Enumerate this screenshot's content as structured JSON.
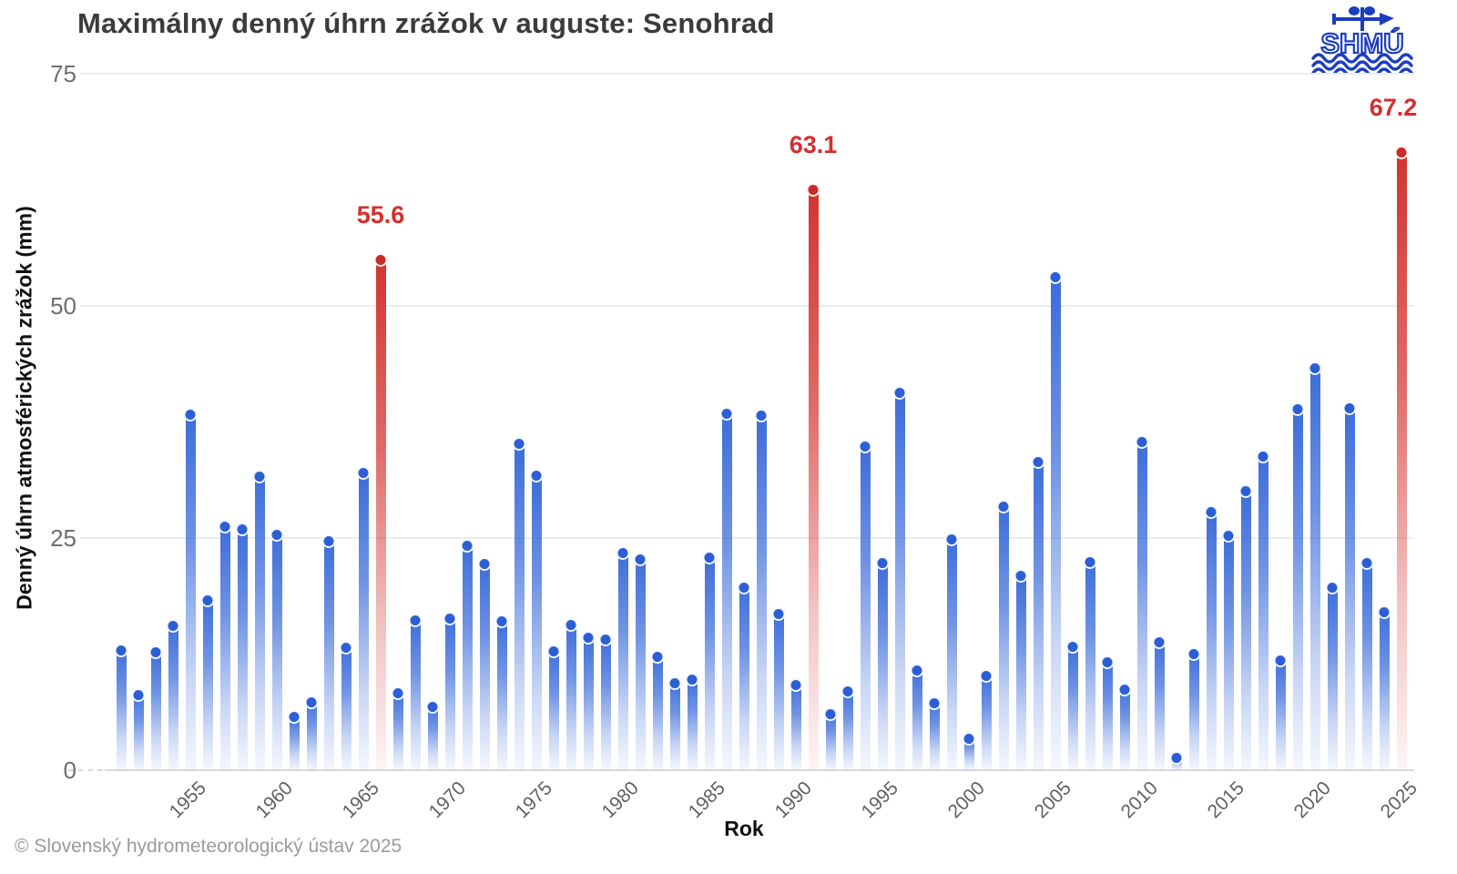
{
  "title": "Maximálny denný úhrn zrážok v auguste: Senohrad",
  "footer": "© Slovenský hydrometeorologický ústav 2025",
  "logo": {
    "text": "SHMÚ",
    "color": "#1c3ec0"
  },
  "colors": {
    "bar_blue": "#3a6bd9",
    "dot_blue": "#2c5ed5",
    "bar_red": "#d3322e",
    "dot_red": "#cc2a26",
    "peak_label_red": "#d32f2f",
    "gridline": "#ececec",
    "axis_text": "#6e6e6e"
  },
  "chart_data": {
    "type": "bar",
    "title": "Maximálny denný úhrn zrážok v auguste: Senohrad",
    "xlabel": "Rok",
    "ylabel": "Denný úhrn atmosférických zrážok (mm)",
    "ylim": [
      0,
      75
    ],
    "y_ticks": [
      0,
      25,
      50,
      75
    ],
    "x_tick_years": [
      1955,
      1960,
      1965,
      1970,
      1975,
      1980,
      1985,
      1990,
      1995,
      2000,
      2005,
      2010,
      2015,
      2020,
      2025
    ],
    "grid": true,
    "legend": false,
    "years": [
      1951,
      1952,
      1953,
      1954,
      1955,
      1956,
      1957,
      1958,
      1959,
      1960,
      1961,
      1962,
      1963,
      1964,
      1965,
      1966,
      1967,
      1968,
      1969,
      1970,
      1971,
      1972,
      1973,
      1974,
      1975,
      1976,
      1977,
      1978,
      1979,
      1980,
      1981,
      1982,
      1983,
      1984,
      1985,
      1986,
      1987,
      1988,
      1989,
      1990,
      1991,
      1992,
      1993,
      1994,
      1995,
      1996,
      1997,
      1998,
      1999,
      2000,
      2001,
      2002,
      2003,
      2004,
      2005,
      2006,
      2007,
      2008,
      2009,
      2010,
      2011,
      2012,
      2013,
      2014,
      2015,
      2016,
      2017,
      2018,
      2019,
      2020,
      2021,
      2022,
      2023,
      2024,
      2025
    ],
    "values": [
      13.5,
      8.7,
      13.3,
      16.2,
      38.9,
      18.9,
      26.9,
      26.6,
      32.3,
      26.0,
      6.4,
      7.9,
      25.3,
      13.8,
      32.6,
      55.6,
      8.9,
      16.8,
      7.5,
      17.0,
      24.8,
      22.8,
      16.7,
      35.8,
      32.4,
      13.4,
      16.3,
      14.9,
      14.7,
      24.0,
      23.3,
      12.8,
      10.0,
      10.4,
      23.5,
      39.0,
      20.3,
      38.8,
      17.5,
      9.8,
      63.1,
      6.7,
      9.1,
      35.5,
      22.9,
      41.3,
      11.4,
      7.8,
      25.5,
      4.0,
      10.8,
      29.0,
      21.6,
      33.8,
      53.7,
      13.9,
      23.0,
      12.3,
      9.3,
      36.0,
      14.4,
      2.0,
      13.1,
      28.4,
      25.9,
      30.7,
      34.4,
      12.5,
      39.5,
      43.9,
      20.3,
      39.6,
      22.9,
      17.6,
      67.2
    ],
    "highlighted": [
      {
        "year": 1966,
        "value": 55.6,
        "label": "55.6"
      },
      {
        "year": 1991,
        "value": 63.1,
        "label": "63.1"
      },
      {
        "year": 2025,
        "value": 67.2,
        "label": "67.2"
      }
    ]
  }
}
